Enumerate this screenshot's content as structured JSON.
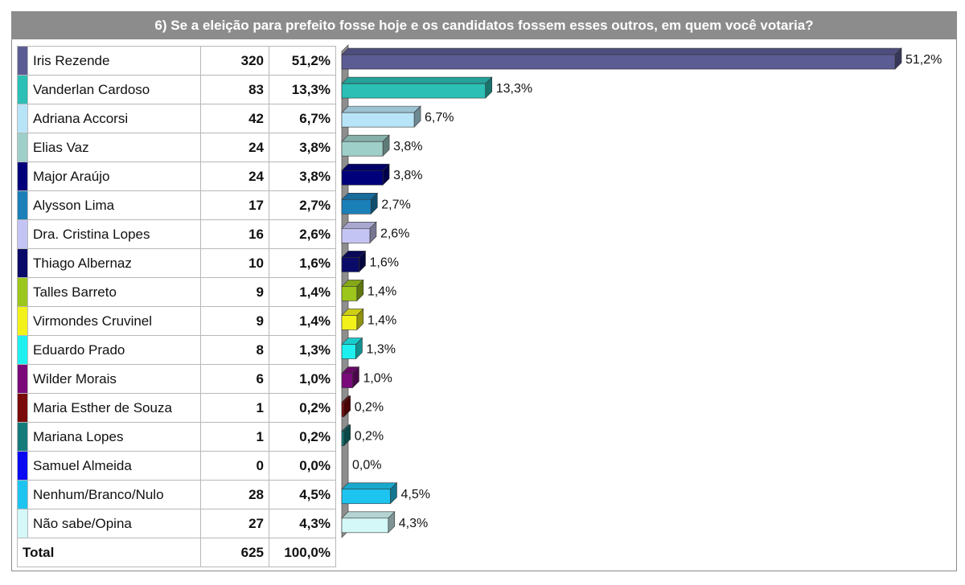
{
  "title": "6) Se a eleição para prefeito fosse hoje e os candidatos fossem esses outros, em quem você votaria?",
  "table": {
    "rows": [
      {
        "name": "Iris Rezende",
        "count": "320",
        "pct": "51,2%",
        "color": "#5c5c94"
      },
      {
        "name": "Vanderlan Cardoso",
        "count": "83",
        "pct": "13,3%",
        "color": "#2bbfb5"
      },
      {
        "name": "Adriana Accorsi",
        "count": "42",
        "pct": "6,7%",
        "color": "#b8e4f7"
      },
      {
        "name": "Elias Vaz",
        "count": "24",
        "pct": "3,8%",
        "color": "#9ecfc8"
      },
      {
        "name": "Major Araújo",
        "count": "24",
        "pct": "3,8%",
        "color": "#00007a"
      },
      {
        "name": "Alysson Lima",
        "count": "17",
        "pct": "2,7%",
        "color": "#1b7fb8"
      },
      {
        "name": "Dra. Cristina Lopes",
        "count": "16",
        "pct": "2,6%",
        "color": "#c4c4f4"
      },
      {
        "name": "Thiago Albernaz",
        "count": "10",
        "pct": "1,6%",
        "color": "#0a0a68"
      },
      {
        "name": "Talles Barreto",
        "count": "9",
        "pct": "1,4%",
        "color": "#9cc61b"
      },
      {
        "name": "Virmondes Cruvinel",
        "count": "9",
        "pct": "1,4%",
        "color": "#f2f21a"
      },
      {
        "name": "Eduardo Prado",
        "count": "8",
        "pct": "1,3%",
        "color": "#1ef0f0"
      },
      {
        "name": "Wilder Morais",
        "count": "6",
        "pct": "1,0%",
        "color": "#7a0a7a"
      },
      {
        "name": "Maria Esther de Souza",
        "count": "1",
        "pct": "0,2%",
        "color": "#7a0a0a"
      },
      {
        "name": "Mariana Lopes",
        "count": "1",
        "pct": "0,2%",
        "color": "#147a7a"
      },
      {
        "name": "Samuel Almeida",
        "count": "0",
        "pct": "0,0%",
        "color": "#0a0af2"
      },
      {
        "name": "Nenhum/Branco/Nulo",
        "count": "28",
        "pct": "4,5%",
        "color": "#1ec4f0"
      },
      {
        "name": "Não sabe/Opina",
        "count": "27",
        "pct": "4,3%",
        "color": "#d4f8f8"
      }
    ],
    "total": {
      "label": "Total",
      "count": "625",
      "pct": "100,0%"
    }
  },
  "chart_data": {
    "type": "bar",
    "orientation": "horizontal",
    "categories": [
      "Iris Rezende",
      "Vanderlan Cardoso",
      "Adriana Accorsi",
      "Elias Vaz",
      "Major Araújo",
      "Alysson Lima",
      "Dra. Cristina Lopes",
      "Thiago Albernaz",
      "Talles Barreto",
      "Virmondes Cruvinel",
      "Eduardo Prado",
      "Wilder Morais",
      "Maria Esther de Souza",
      "Mariana Lopes",
      "Samuel Almeida",
      "Nenhum/Branco/Nulo",
      "Não sabe/Opina"
    ],
    "values": [
      51.2,
      13.3,
      6.7,
      3.8,
      3.8,
      2.7,
      2.6,
      1.6,
      1.4,
      1.4,
      1.3,
      1.0,
      0.2,
      0.2,
      0.0,
      4.5,
      4.3
    ],
    "labels": [
      "51,2%",
      "13,3%",
      "6,7%",
      "3,8%",
      "3,8%",
      "2,7%",
      "2,6%",
      "1,6%",
      "1,4%",
      "1,4%",
      "1,3%",
      "1,0%",
      "0,2%",
      "0,2%",
      "0,0%",
      "4,5%",
      "4,3%"
    ],
    "colors": [
      "#5c5c94",
      "#2bbfb5",
      "#b8e4f7",
      "#9ecfc8",
      "#00007a",
      "#1b7fb8",
      "#c4c4f4",
      "#0a0a68",
      "#9cc61b",
      "#f2f21a",
      "#1ef0f0",
      "#7a0a7a",
      "#7a0a0a",
      "#147a7a",
      "#0a0af2",
      "#1ec4f0",
      "#d4f8f8"
    ],
    "xlim": [
      0,
      51.2
    ],
    "style": "3d"
  }
}
